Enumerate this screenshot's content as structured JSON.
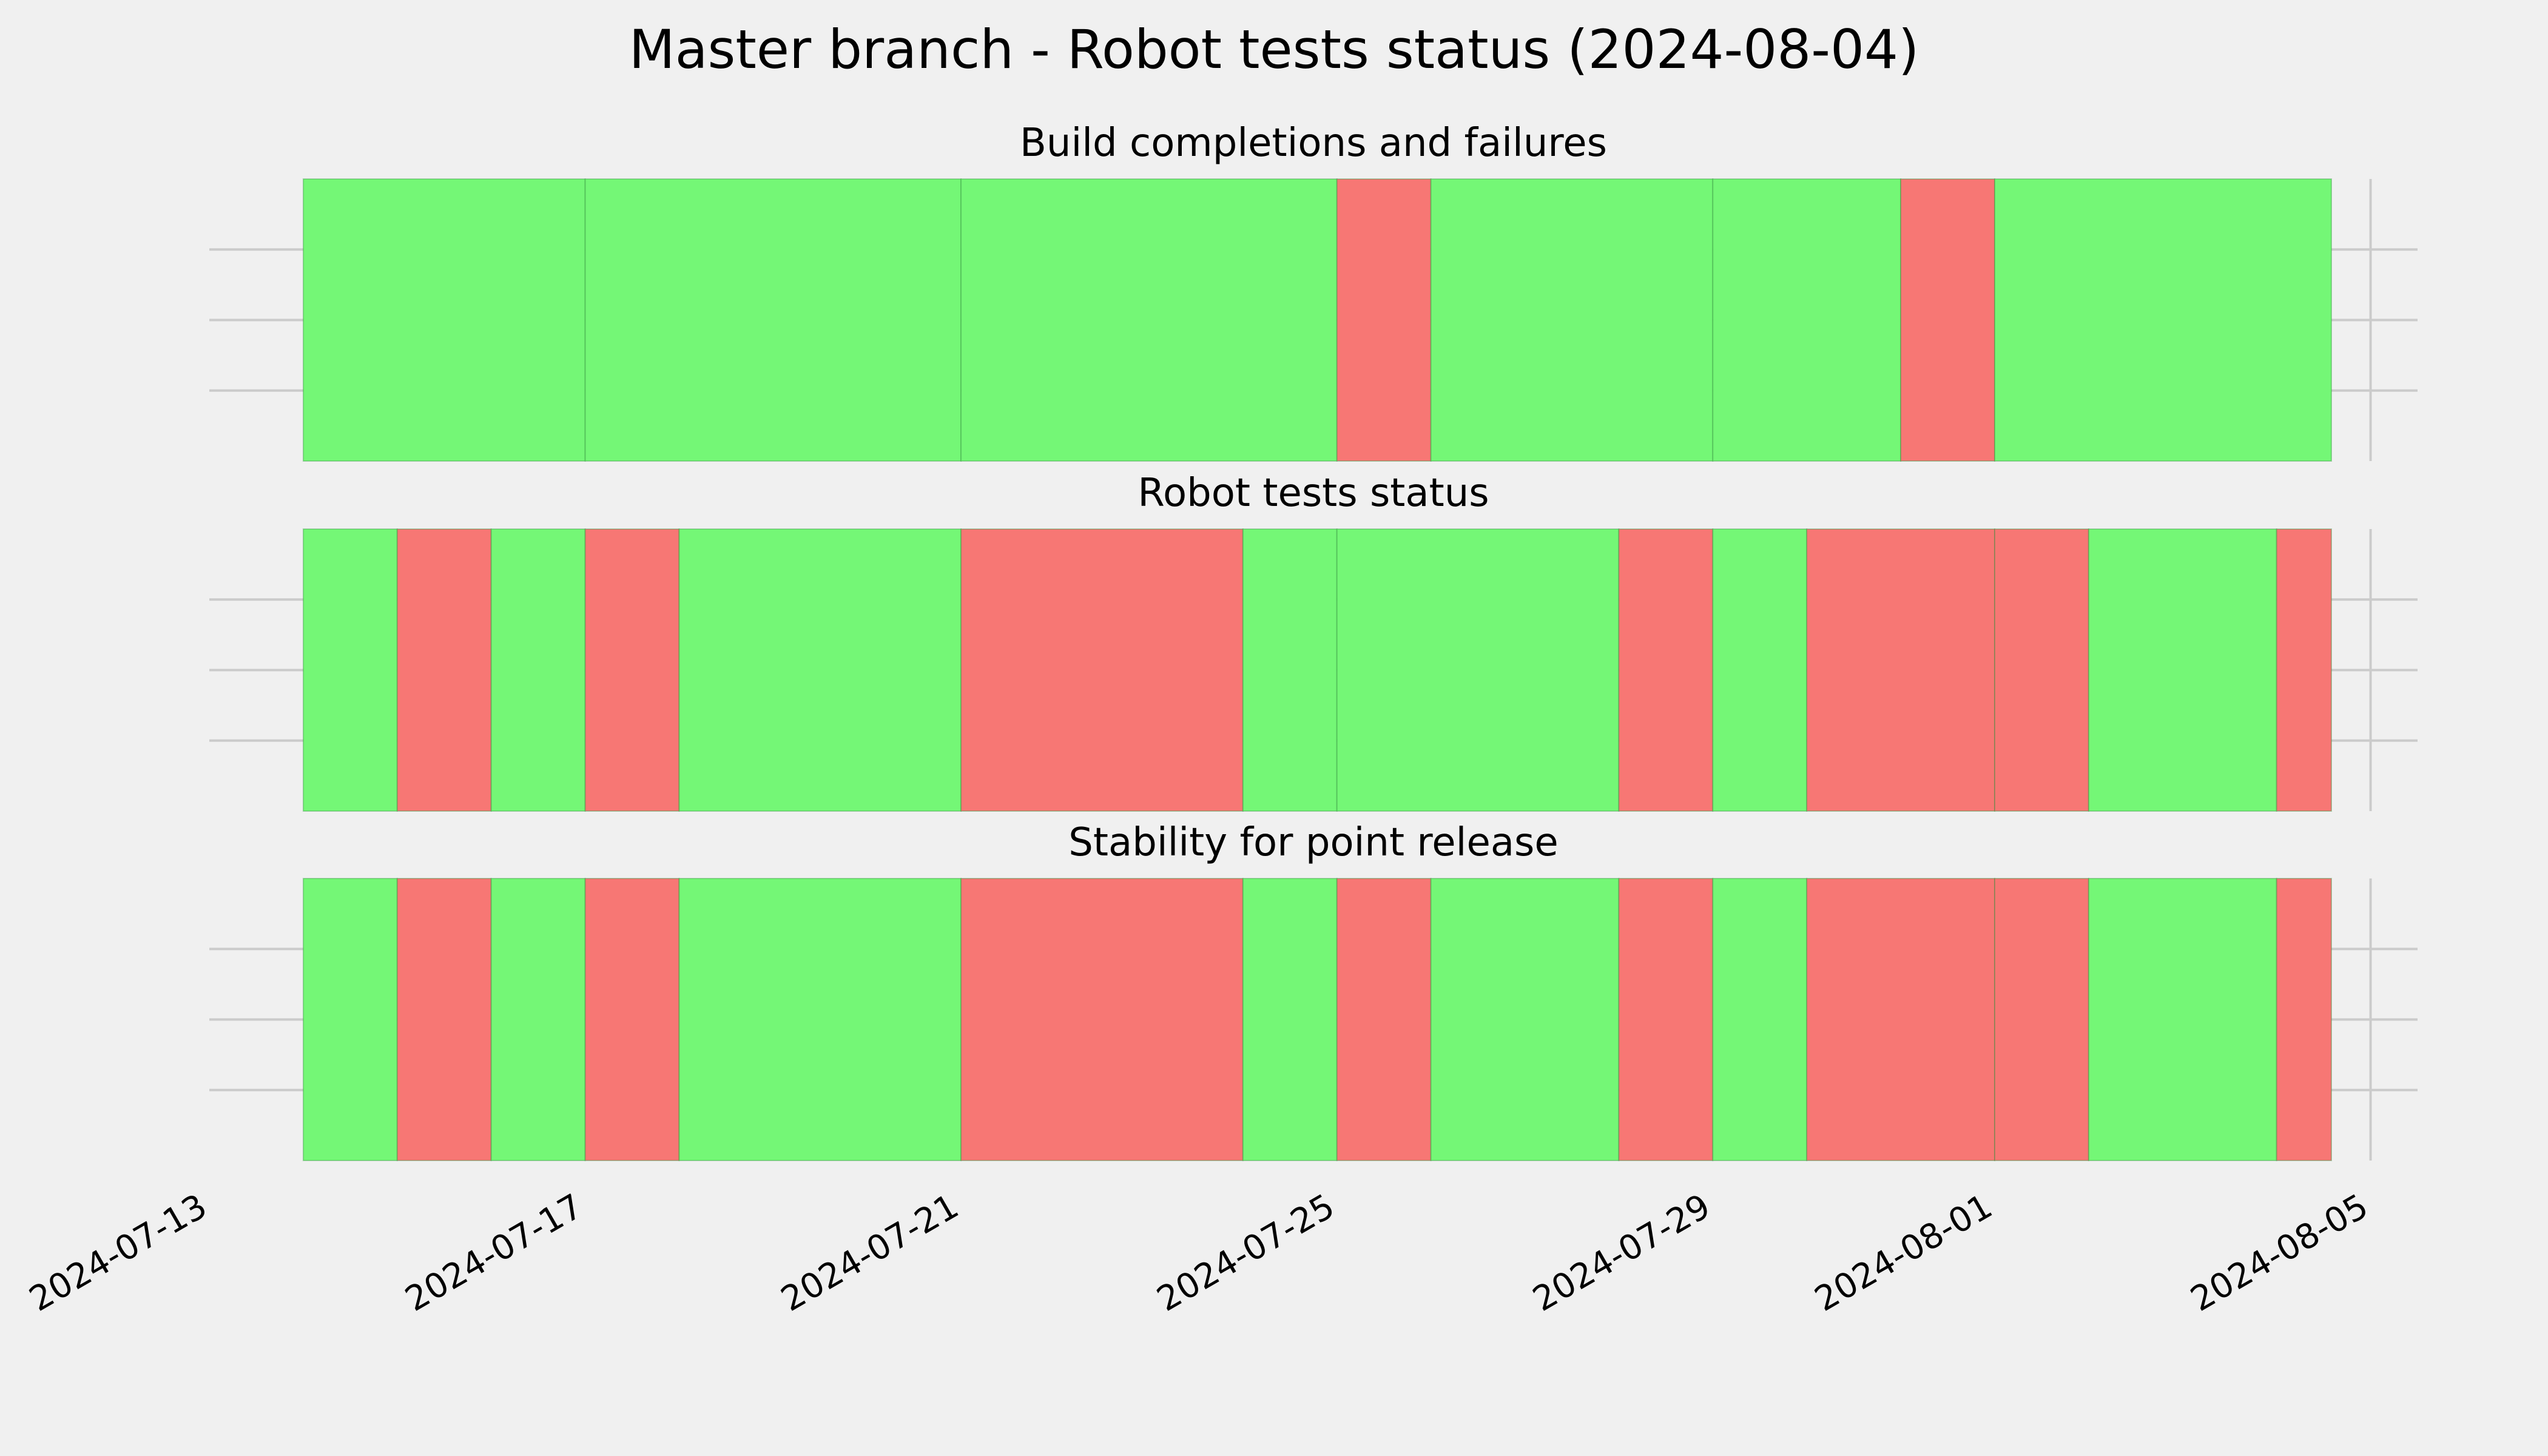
{
  "title": "Master branch - Robot tests status (2024-08-04)",
  "colors": {
    "background": "#f0f0f0",
    "pass": "#74f776",
    "fail": "#f77774",
    "grid": "#cbcbcb"
  },
  "chart_data": {
    "type": "timeline",
    "title": "Master branch - Robot tests status (2024-08-04)",
    "xlabel": "",
    "ylabel": "",
    "x_axis": {
      "type": "date",
      "range": [
        "2024-07-13",
        "2024-08-05T12:00"
      ],
      "ticks": [
        "2024-07-13",
        "2024-07-17",
        "2024-07-21",
        "2024-07-25",
        "2024-07-29",
        "2024-08-01",
        "2024-08-05"
      ]
    },
    "grid": true,
    "legend": "none",
    "panels": [
      {
        "name": "Build completions and failures",
        "segments": [
          {
            "start": "2024-07-14",
            "end": "2024-07-17",
            "status": "pass"
          },
          {
            "start": "2024-07-17",
            "end": "2024-07-21",
            "status": "pass"
          },
          {
            "start": "2024-07-21",
            "end": "2024-07-25",
            "status": "pass"
          },
          {
            "start": "2024-07-25",
            "end": "2024-07-26",
            "status": "fail"
          },
          {
            "start": "2024-07-26",
            "end": "2024-07-29",
            "status": "pass"
          },
          {
            "start": "2024-07-29",
            "end": "2024-07-31",
            "status": "pass"
          },
          {
            "start": "2024-07-31",
            "end": "2024-08-01",
            "status": "fail"
          },
          {
            "start": "2024-08-01",
            "end": "2024-08-04T14:00",
            "status": "pass"
          }
        ]
      },
      {
        "name": "Robot tests status",
        "segments": [
          {
            "start": "2024-07-14",
            "end": "2024-07-15",
            "status": "pass"
          },
          {
            "start": "2024-07-15",
            "end": "2024-07-16",
            "status": "fail"
          },
          {
            "start": "2024-07-16",
            "end": "2024-07-17",
            "status": "pass"
          },
          {
            "start": "2024-07-17",
            "end": "2024-07-18",
            "status": "fail"
          },
          {
            "start": "2024-07-18",
            "end": "2024-07-21",
            "status": "pass"
          },
          {
            "start": "2024-07-21",
            "end": "2024-07-24",
            "status": "fail"
          },
          {
            "start": "2024-07-24",
            "end": "2024-07-25",
            "status": "pass"
          },
          {
            "start": "2024-07-25",
            "end": "2024-07-28",
            "status": "pass"
          },
          {
            "start": "2024-07-28",
            "end": "2024-07-29",
            "status": "fail"
          },
          {
            "start": "2024-07-29",
            "end": "2024-07-30",
            "status": "pass"
          },
          {
            "start": "2024-07-30",
            "end": "2024-08-01",
            "status": "fail"
          },
          {
            "start": "2024-08-01",
            "end": "2024-08-02",
            "status": "fail"
          },
          {
            "start": "2024-08-02",
            "end": "2024-08-04",
            "status": "pass"
          },
          {
            "start": "2024-08-04",
            "end": "2024-08-04T14:00",
            "status": "fail"
          }
        ]
      },
      {
        "name": "Stability for point release",
        "segments": [
          {
            "start": "2024-07-14",
            "end": "2024-07-15",
            "status": "pass"
          },
          {
            "start": "2024-07-15",
            "end": "2024-07-16",
            "status": "fail"
          },
          {
            "start": "2024-07-16",
            "end": "2024-07-17",
            "status": "pass"
          },
          {
            "start": "2024-07-17",
            "end": "2024-07-18",
            "status": "fail"
          },
          {
            "start": "2024-07-18",
            "end": "2024-07-21",
            "status": "pass"
          },
          {
            "start": "2024-07-21",
            "end": "2024-07-24",
            "status": "fail"
          },
          {
            "start": "2024-07-24",
            "end": "2024-07-25",
            "status": "pass"
          },
          {
            "start": "2024-07-25",
            "end": "2024-07-26",
            "status": "fail"
          },
          {
            "start": "2024-07-26",
            "end": "2024-07-28",
            "status": "pass"
          },
          {
            "start": "2024-07-28",
            "end": "2024-07-29",
            "status": "fail"
          },
          {
            "start": "2024-07-29",
            "end": "2024-07-30",
            "status": "pass"
          },
          {
            "start": "2024-07-30",
            "end": "2024-08-01",
            "status": "fail"
          },
          {
            "start": "2024-08-01",
            "end": "2024-08-02",
            "status": "fail"
          },
          {
            "start": "2024-08-02",
            "end": "2024-08-04",
            "status": "pass"
          },
          {
            "start": "2024-08-04",
            "end": "2024-08-04T14:00",
            "status": "fail"
          }
        ]
      }
    ]
  }
}
